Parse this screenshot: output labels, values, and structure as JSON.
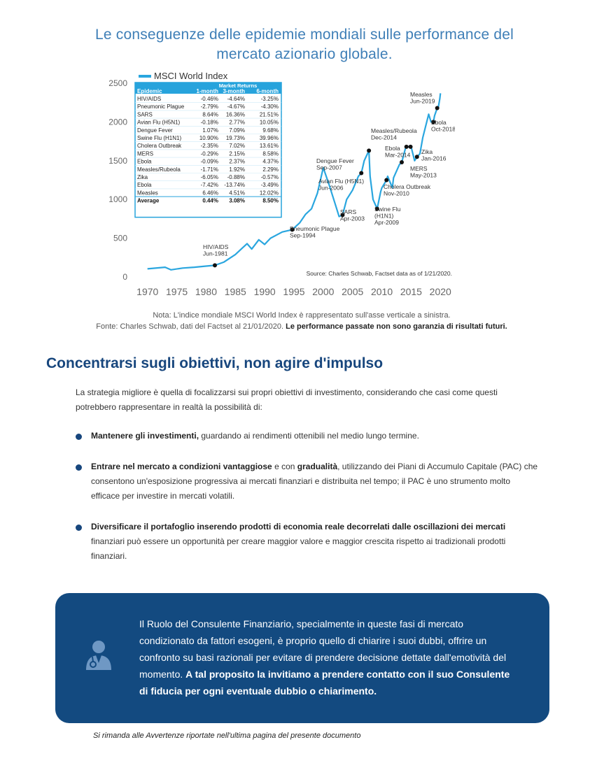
{
  "title": "Le conseguenze delle epidemie mondiali sulle performance del mercato azionario globale.",
  "chart_data": {
    "type": "line",
    "series": [
      {
        "name": "MSCI World Index",
        "x": [
          1970,
          1972,
          1973,
          1974,
          1976,
          1978,
          1980,
          1981.5,
          1983,
          1985,
          1986,
          1987,
          1987.8,
          1989,
          1990,
          1991,
          1993,
          1994.7,
          1996,
          1997,
          1998,
          1999,
          2000,
          2001,
          2002,
          2002.7,
          2003.3,
          2004,
          2005,
          2006,
          2006.5,
          2007,
          2007.8,
          2008,
          2008.5,
          2009.2,
          2009.8,
          2010,
          2010.8,
          2011,
          2011.8,
          2012,
          2013,
          2013.4,
          2014,
          2014.2,
          2015,
          2015.6,
          2016,
          2016.5,
          2017,
          2018,
          2018.4,
          2018.8,
          2019,
          2019.45,
          2019.6,
          2019.9,
          2020
        ],
        "y": [
          105,
          118,
          125,
          92,
          115,
          125,
          140,
          150,
          190,
          290,
          360,
          430,
          360,
          480,
          420,
          500,
          580,
          610,
          700,
          810,
          880,
          1080,
          1410,
          1190,
          950,
          780,
          800,
          1000,
          1120,
          1300,
          1340,
          1500,
          1630,
          1300,
          1000,
          880,
          1100,
          1150,
          1250,
          1300,
          1150,
          1280,
          1450,
          1480,
          1650,
          1680,
          1680,
          1500,
          1550,
          1590,
          1800,
          2100,
          2000,
          2000,
          2080,
          2180,
          2170,
          2300,
          2370
        ]
      }
    ],
    "xlim": [
      1968,
      2022
    ],
    "ylim": [
      0,
      2500
    ],
    "xticks": [
      "1970",
      "1975",
      "1980",
      "1985",
      "1990",
      "1995",
      "2000",
      "2005",
      "2010",
      "2015",
      "2020"
    ],
    "yticks": [
      "0",
      "500",
      "1000",
      "1500",
      "2000",
      "2500"
    ],
    "legend": "MSCI World Index",
    "source": "Source: Charles Schwab, Factset data as of 1/21/2020.",
    "events": [
      {
        "x": 1981.5,
        "y": 150,
        "lines": [
          "HIV/AIDS",
          "Jun-1981"
        ]
      },
      {
        "x": 1994.7,
        "y": 610,
        "lines": [
          "Pneumonic Plague",
          "Sep-1994"
        ]
      },
      {
        "x": 2003.3,
        "y": 800,
        "lines": [
          "SARS",
          "Apr-2003"
        ]
      },
      {
        "x": 2006.5,
        "y": 1340,
        "lines": [
          "Avian Flu (H5N1)",
          "Jun-2006"
        ]
      },
      {
        "x": 2007.8,
        "y": 1630,
        "lines": [
          "Dengue Fever",
          "Sep-2007"
        ]
      },
      {
        "x": 2009.2,
        "y": 880,
        "lines": [
          "Swine Flu",
          "(H1N1)",
          "Apr-2009"
        ]
      },
      {
        "x": 2010.8,
        "y": 1250,
        "lines": [
          "Cholera Outbreak",
          "Nov-2010"
        ]
      },
      {
        "x": 2013.4,
        "y": 1480,
        "lines": [
          "MERS",
          "May-2013"
        ]
      },
      {
        "x": 2014.2,
        "y": 1680,
        "lines": [
          "Ebola",
          "Mar-2014"
        ]
      },
      {
        "x": 2014.9,
        "y": 1680,
        "lines": [
          "Measles/Rubeola",
          "Dec-2014"
        ]
      },
      {
        "x": 2016.0,
        "y": 1550,
        "lines": [
          "Zika",
          "Jan-2016"
        ]
      },
      {
        "x": 2018.8,
        "y": 2000,
        "lines": [
          "Ebola",
          "Oct-2018"
        ]
      },
      {
        "x": 2019.45,
        "y": 2180,
        "lines": [
          "Measles",
          "Jun-2019"
        ]
      }
    ],
    "returns_table": {
      "header_top": "Market Returns",
      "columns": [
        "Epidemic",
        "1-month",
        "3-month",
        "6-month"
      ],
      "rows": [
        [
          "HIV/AIDS",
          "-0.46%",
          "-4.64%",
          "-3.25%"
        ],
        [
          "Pneumonic Plague",
          "-2.79%",
          "-4.67%",
          "-4.30%"
        ],
        [
          "SARS",
          "8.64%",
          "16.36%",
          "21.51%"
        ],
        [
          "Avian Flu (H5N1)",
          "-0.18%",
          "2.77%",
          "10.05%"
        ],
        [
          "Dengue Fever",
          "1.07%",
          "7.09%",
          "9.68%"
        ],
        [
          "Swine Flu (H1N1)",
          "10.90%",
          "19.73%",
          "39.96%"
        ],
        [
          "Cholera Outbreak",
          "-2.35%",
          "7.02%",
          "13.61%"
        ],
        [
          "MERS",
          "-0.29%",
          "2.15%",
          "8.58%"
        ],
        [
          "Ebola",
          "-0.09%",
          "2.37%",
          "4.37%"
        ],
        [
          "Measles/Rubeola",
          "-1.71%",
          "1.92%",
          "2.29%"
        ],
        [
          "Zika",
          "-6.05%",
          "-0.88%",
          "-0.57%"
        ],
        [
          "Ebola",
          "-7.42%",
          "-13.74%",
          "-3.49%"
        ],
        [
          "Measles",
          "6.46%",
          "4.51%",
          "12.02%"
        ]
      ],
      "average": [
        "Average",
        "0.44%",
        "3.08%",
        "8.50%"
      ]
    }
  },
  "note": {
    "line1": "Nota: L'indice mondiale MSCI World Index è rappresentato sull'asse verticale a sinistra.",
    "line2": "Fonte: Charles Schwab, dati del Factset al 21/01/2020.",
    "line2_bold": "Le performance passate non sono garanzia di risultati futuri."
  },
  "heading": "Concentrarsi sugli obiettivi, non agire d'impulso",
  "intro": "La strategia migliore è quella di focalizzarsi sui propri obiettivi di investimento, considerando che casi come questi potrebbero rappresentare in realtà la possibilità di:",
  "bullets": [
    {
      "bold": "Mantenere gli investimenti,",
      "text": " guardando ai rendimenti ottenibili nel medio lungo termine."
    },
    {
      "bold": "Entrare nel mercato a condizioni vantaggiose",
      "mid": " e con ",
      "bold2": "gradualità",
      "text": ", utilizzando dei Piani di Accumulo Capitale (PAC) che consentono un'esposizione progressiva ai mercati finanziari e distribuita nel tempo; il PAC è uno strumento molto efficace per investire in mercati volatili."
    },
    {
      "bold": "Diversificare il portafoglio inserendo prodotti di economia reale decorrelati dalle oscillazioni dei mercati",
      "text": " finanziari può essere un opportunità per creare maggior valore e maggior crescita rispetto ai tradizionali prodotti finanziari."
    }
  ],
  "callout": {
    "icon": "advisor-icon",
    "text": "Il Ruolo del Consulente Finanziario, specialmente in queste fasi di mercato condizionato da fattori esogeni, è proprio quello di chiarire i suoi dubbi, offrire un confronto su basi razionali per evitare di prendere decisione dettate dall'emotività del momento. ",
    "bold": "A tal proposito la invitiamo a prendere contatto con il suo Consulente di fiducia per ogni eventuale dubbio o chiarimento."
  },
  "footer": "Si rimanda alle Avvertenze riportate nell'ultima pagina del presente documento",
  "colors": {
    "accent": "#17467d",
    "title": "#3f7fb7",
    "line": "#2aa6df",
    "callout_bg": "#134a80"
  }
}
